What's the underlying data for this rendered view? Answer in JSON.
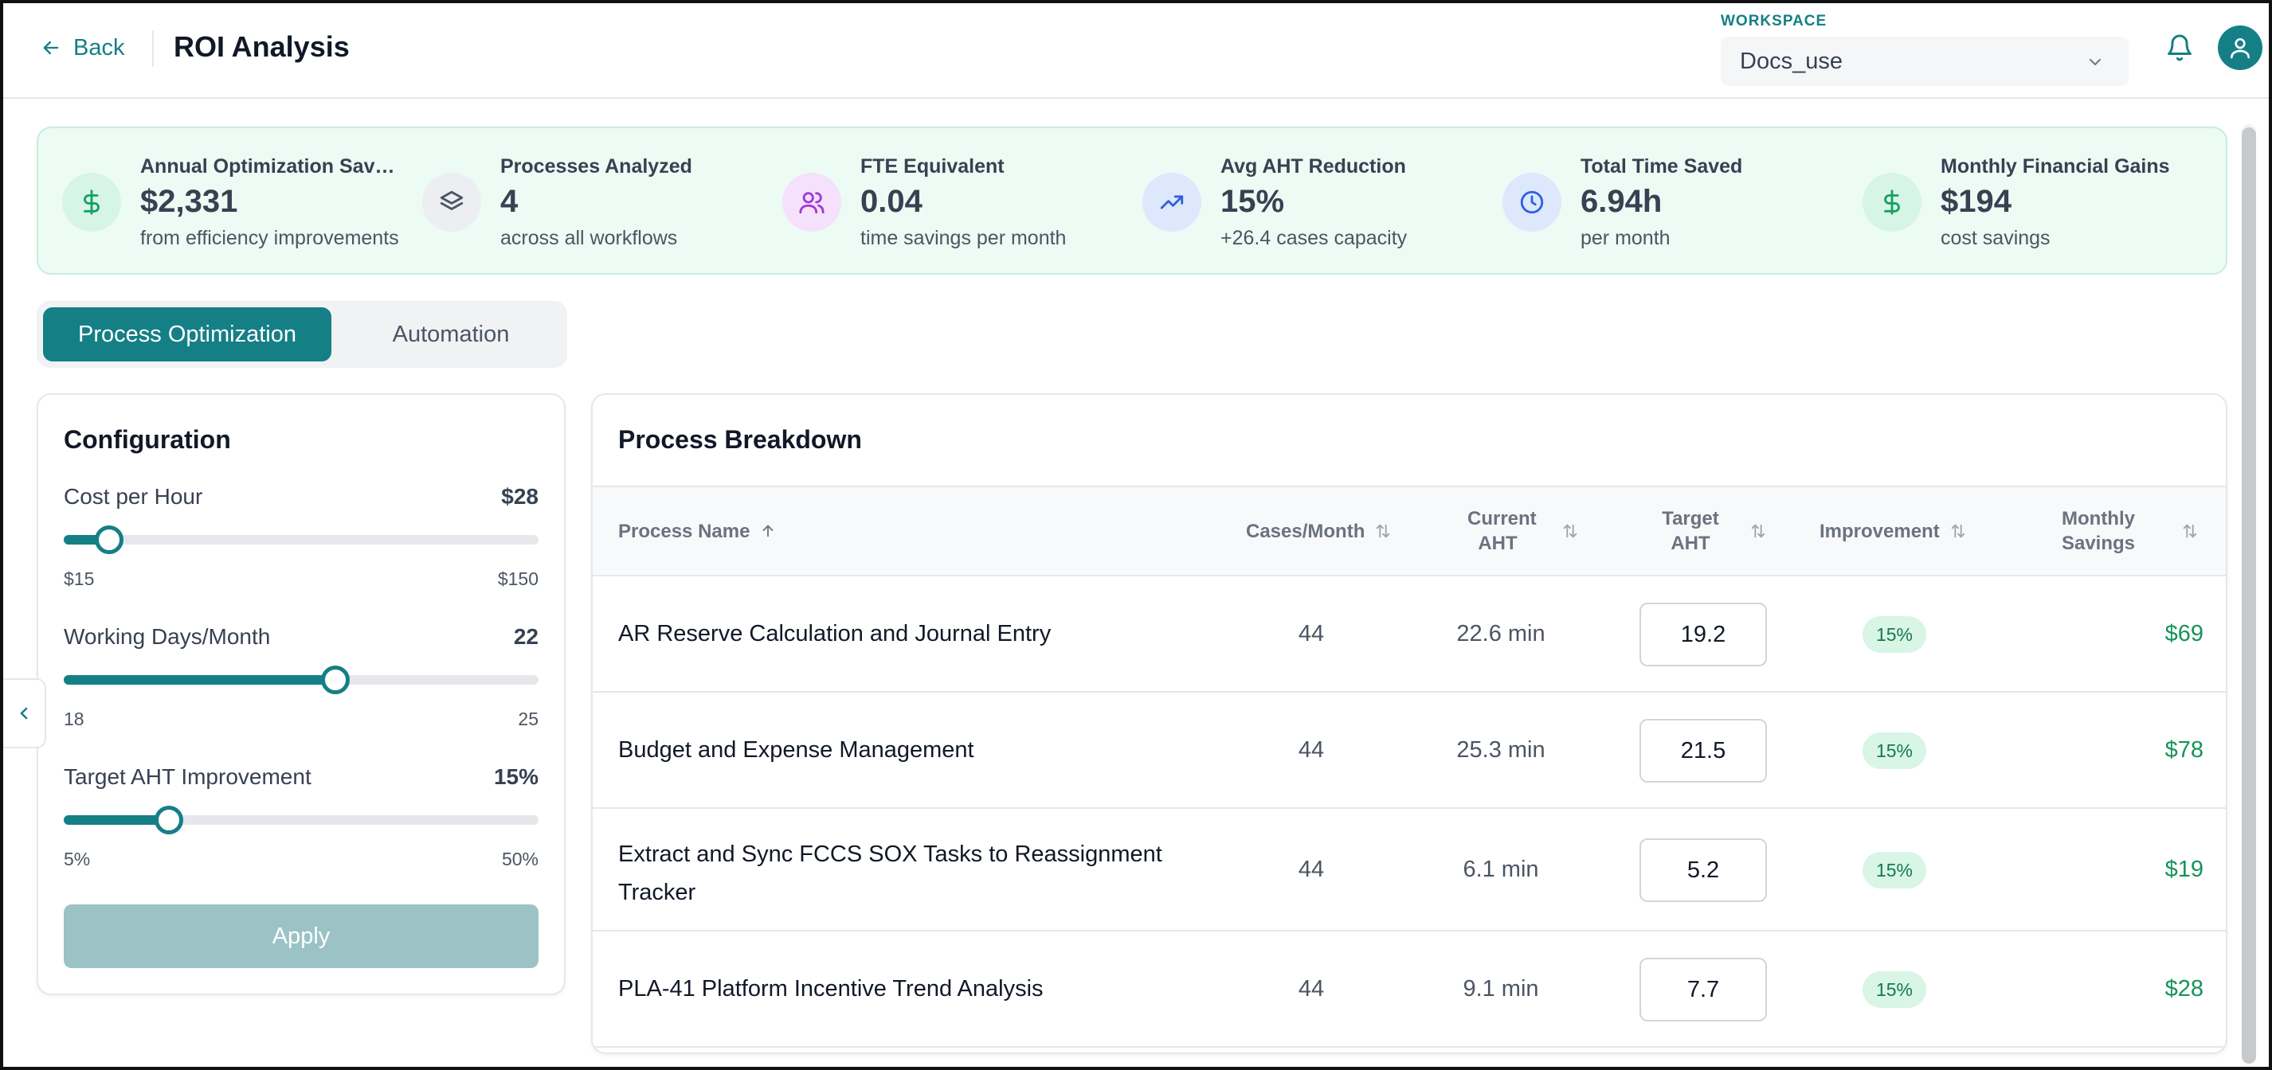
{
  "header": {
    "back_label": "Back",
    "title": "ROI Analysis",
    "workspace_label": "WORKSPACE",
    "workspace_value": "Docs_use"
  },
  "summary": [
    {
      "label": "Annual Optimization Savings",
      "value": "$2,331",
      "sub": "from efficiency improvements",
      "icon": "dollar-icon",
      "icon_bg": "#d7f5e6",
      "icon_color": "#16a063"
    },
    {
      "label": "Processes Analyzed",
      "value": "4",
      "sub": "across all workflows",
      "icon": "layers-icon",
      "icon_bg": "#eceef1",
      "icon_color": "#4b5563"
    },
    {
      "label": "FTE Equivalent",
      "value": "0.04",
      "sub": "time savings per month",
      "icon": "users-icon",
      "icon_bg": "#f5e1fb",
      "icon_color": "#a339d8"
    },
    {
      "label": "Avg AHT Reduction",
      "value": "15%",
      "sub": "+26.4 cases capacity",
      "icon": "trending-up-icon",
      "icon_bg": "#dde8fd",
      "icon_color": "#2f5fe0"
    },
    {
      "label": "Total Time Saved",
      "value": "6.94h",
      "sub": "per month",
      "icon": "clock-icon",
      "icon_bg": "#dde8fd",
      "icon_color": "#2f5fe0"
    },
    {
      "label": "Monthly Financial Gains",
      "value": "$194",
      "sub": "cost savings",
      "icon": "dollar-icon",
      "icon_bg": "#d7f5e6",
      "icon_color": "#16a063"
    }
  ],
  "tabs": [
    {
      "label": "Process Optimization",
      "active": true
    },
    {
      "label": "Automation",
      "active": false
    }
  ],
  "config": {
    "title": "Configuration",
    "sliders": [
      {
        "name": "Cost per Hour",
        "display": "$28",
        "value": 28,
        "min": 15,
        "max": 150,
        "min_label": "$15",
        "max_label": "$150"
      },
      {
        "name": "Working Days/Month",
        "display": "22",
        "value": 22,
        "min": 18,
        "max": 25,
        "min_label": "18",
        "max_label": "25"
      },
      {
        "name": "Target AHT Improvement",
        "display": "15%",
        "value": 15,
        "min": 5,
        "max": 50,
        "min_label": "5%",
        "max_label": "50%"
      }
    ],
    "apply_label": "Apply"
  },
  "breakdown": {
    "title": "Process Breakdown",
    "columns": {
      "process_name": "Process Name",
      "cases": "Cases/Month",
      "current_1": "Current",
      "current_2": "AHT",
      "target_1": "Target",
      "target_2": "AHT",
      "improvement": "Improvement",
      "savings_1": "Monthly",
      "savings_2": "Savings"
    },
    "rows": [
      {
        "name_1": "AR Reserve Calculation and Journal Entry",
        "name_2": "",
        "cases": "44",
        "current": "22.6 min",
        "target": "19.2",
        "improvement": "15%",
        "savings": "$69"
      },
      {
        "name_1": "Budget and Expense Management",
        "name_2": "",
        "cases": "44",
        "current": "25.3 min",
        "target": "21.5",
        "improvement": "15%",
        "savings": "$78"
      },
      {
        "name_1": "Extract and Sync FCCS SOX Tasks to Reassignment",
        "name_2": "Tracker",
        "cases": "44",
        "current": "6.1 min",
        "target": "5.2",
        "improvement": "15%",
        "savings": "$19"
      },
      {
        "name_1": "PLA-41 Platform Incentive Trend Analysis",
        "name_2": "",
        "cases": "44",
        "current": "9.1 min",
        "target": "7.7",
        "improvement": "15%",
        "savings": "$28"
      }
    ]
  },
  "colors": {
    "accent": "#157f86",
    "money": "#17935a",
    "summary_bg": "#ecfbf4"
  }
}
